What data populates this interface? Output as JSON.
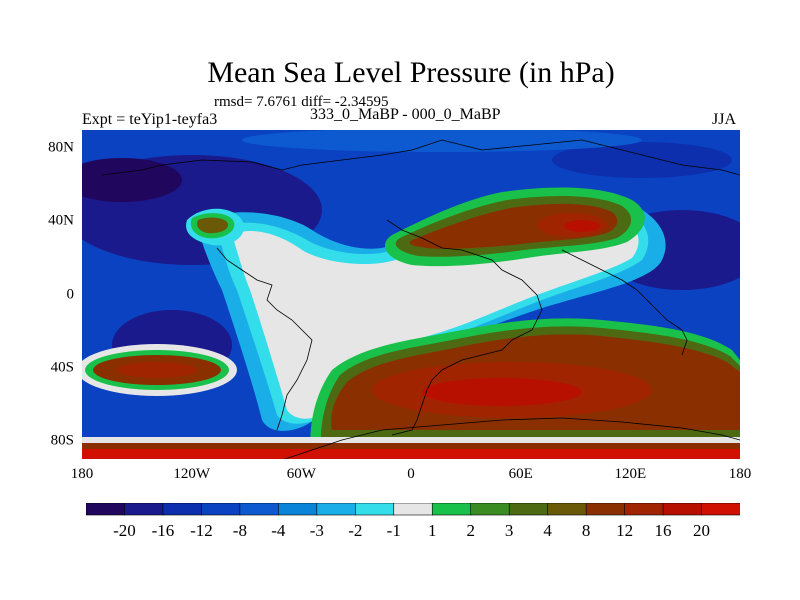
{
  "title": "Mean Sea Level Pressure (in hPa)",
  "stats": "rmsd= 7.6761 diff= -2.34595",
  "experiment": "Expt = teYip1-teyfa3",
  "period": "333_0_MaBP - 000_0_MaBP",
  "season": "JJA",
  "x_ticks": [
    "180",
    "120W",
    "60W",
    "0",
    "60E",
    "120E",
    "180"
  ],
  "y_ticks": [
    "80N",
    "40N",
    "0",
    "40S",
    "80S"
  ],
  "x_tick_lon": [
    -180,
    -120,
    -60,
    0,
    60,
    120,
    180
  ],
  "y_tick_lat": [
    80,
    40,
    0,
    -40,
    -80
  ],
  "chart_data": {
    "type": "heatmap",
    "title": "Mean Sea Level Pressure (in hPa)",
    "variable": "sea level pressure difference",
    "units": "hPa",
    "xlim": [
      -180,
      180
    ],
    "ylim": [
      -90,
      90
    ],
    "colorbar": {
      "levels": [
        -20,
        -16,
        -12,
        -8,
        -4,
        -3,
        -2,
        -1,
        1,
        2,
        3,
        4,
        8,
        12,
        16,
        20
      ],
      "labels": [
        "-20",
        "-16",
        "-12",
        "-8",
        "-4",
        "-3",
        "-2",
        "-1",
        "1",
        "2",
        "3",
        "4",
        "8",
        "12",
        "16",
        "20"
      ],
      "colors": [
        "#21065e",
        "#1a1a8c",
        "#0d2fae",
        "#0a42c2",
        "#0d5ad0",
        "#0a84d8",
        "#1aaee8",
        "#33ddea",
        "#e6e6e6",
        "#19c04a",
        "#3a8c22",
        "#4d6a12",
        "#6a5a08",
        "#8a3000",
        "#a02400",
        "#b81000",
        "#d01000"
      ]
    }
  }
}
